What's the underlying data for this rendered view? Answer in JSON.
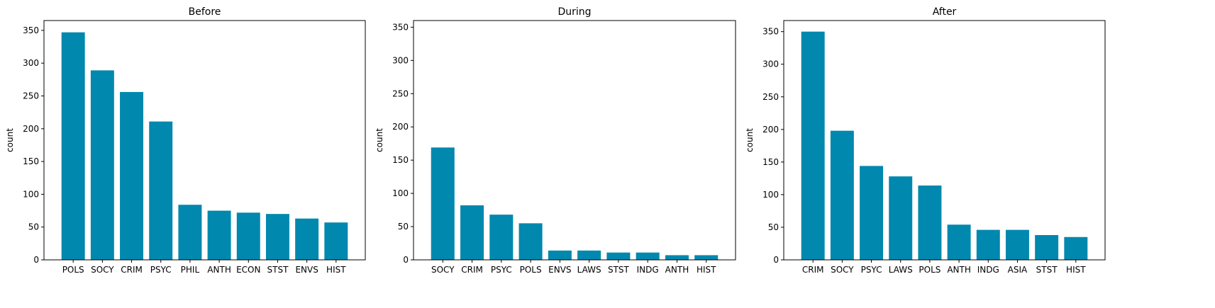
{
  "chart_data": [
    {
      "type": "bar",
      "title": "Before",
      "xlabel": "",
      "ylabel": "count",
      "ylim": [
        0,
        365
      ],
      "yticks": [
        0,
        50,
        100,
        150,
        200,
        250,
        300,
        350
      ],
      "categories": [
        "POLS",
        "SOCY",
        "CRIM",
        "PSYC",
        "PHIL",
        "ANTH",
        "ECON",
        "STST",
        "ENVS",
        "HIST"
      ],
      "values": [
        347,
        289,
        256,
        211,
        84,
        75,
        72,
        70,
        63,
        57
      ],
      "color": "#0088ae"
    },
    {
      "type": "bar",
      "title": "During",
      "xlabel": "",
      "ylabel": "count",
      "ylim": [
        0,
        360
      ],
      "yticks": [
        0,
        50,
        100,
        150,
        200,
        250,
        300,
        350
      ],
      "categories": [
        "SOCY",
        "CRIM",
        "PSYC",
        "POLS",
        "ENVS",
        "LAWS",
        "STST",
        "INDG",
        "ANTH",
        "HIST"
      ],
      "values": [
        169,
        82,
        68,
        55,
        14,
        14,
        11,
        11,
        7,
        7
      ],
      "color": "#0088ae"
    },
    {
      "type": "bar",
      "title": "After",
      "xlabel": "",
      "ylabel": "count",
      "ylim": [
        0,
        367
      ],
      "yticks": [
        0,
        50,
        100,
        150,
        200,
        250,
        300,
        350
      ],
      "categories": [
        "CRIM",
        "SOCY",
        "PSYC",
        "LAWS",
        "POLS",
        "ANTH",
        "INDG",
        "ASIA",
        "STST",
        "HIST"
      ],
      "values": [
        350,
        198,
        144,
        128,
        114,
        54,
        46,
        46,
        38,
        35
      ],
      "color": "#0088ae"
    }
  ]
}
